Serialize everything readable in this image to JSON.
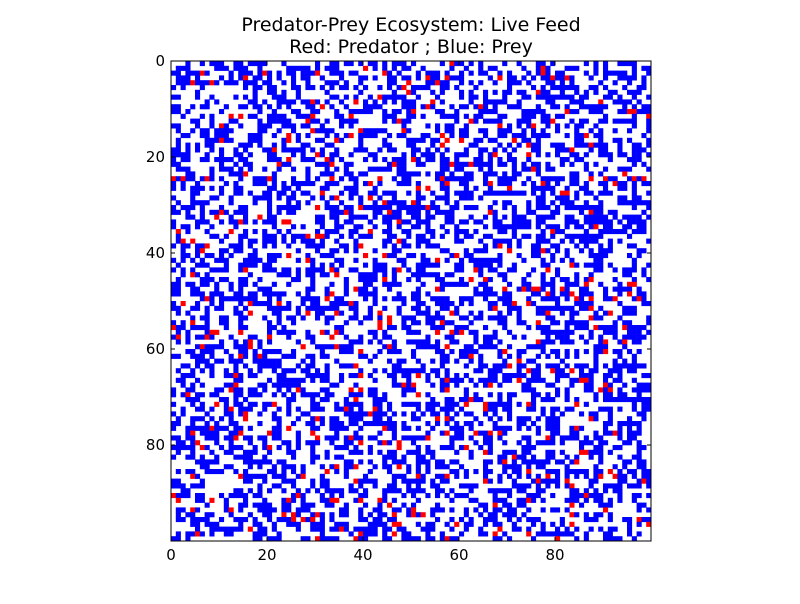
{
  "chart_data": {
    "type": "heatmap",
    "title_lines": [
      "Predator-Prey Ecosystem: Live Feed",
      "Red: Predator ; Blue: Prey"
    ],
    "grid_size": [
      100,
      100
    ],
    "xlim": [
      0,
      100
    ],
    "ylim": [
      100,
      0
    ],
    "y_axis_inverted": true,
    "x_ticks": [
      0,
      20,
      40,
      60,
      80
    ],
    "y_ticks": [
      0,
      20,
      40,
      60,
      80
    ],
    "x_tick_labels": [
      "0",
      "20",
      "40",
      "60",
      "80"
    ],
    "y_tick_labels": [
      "0",
      "20",
      "40",
      "60",
      "80"
    ],
    "grid": false,
    "legend": "none",
    "categories": [
      "empty",
      "prey",
      "predator"
    ],
    "colors": {
      "empty": "#ffffff",
      "prey": "#0000ff",
      "predator": "#ff0000",
      "axes": "#000000"
    },
    "cell_fraction_estimate": {
      "empty": 0.55,
      "prey": 0.42,
      "predator": 0.03
    }
  }
}
